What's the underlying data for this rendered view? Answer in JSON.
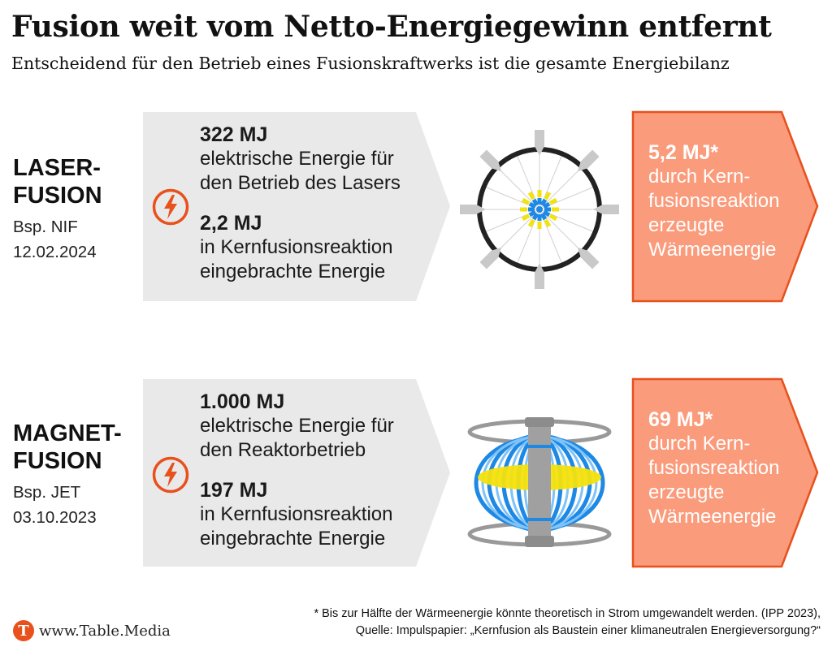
{
  "header": {
    "title": "Fusion weit vom Netto-Energiegewinn entfernt",
    "subtitle": "Entscheidend für den Betrieb eines Fusionskraftwerks ist die gesamte Energiebilanz"
  },
  "rows": [
    {
      "name_line1": "LASER-",
      "name_line2": "FUSION",
      "example": "Bsp. NIF",
      "date": "12.02.2024",
      "input_value": "322 MJ",
      "input_desc_line1": "elektrische Energie für",
      "input_desc_line2": "den Betrieb des Lasers",
      "injected_value": "2,2 MJ",
      "injected_desc_line1": "in Kernfusionsreaktion",
      "injected_desc_line2": "eingebrachte Energie",
      "output_value": "5,2 MJ*",
      "output_desc_line1": "durch Kern-",
      "output_desc_line2": "fusionsreaktion",
      "output_desc_line3": "erzeugte",
      "output_desc_line4": "Wärmeenergie",
      "icon": "lightning-icon",
      "illustration": "laser-target-icon"
    },
    {
      "name_line1": "MAGNET-",
      "name_line2": "FUSION",
      "example": "Bsp. JET",
      "date": "03.10.2023",
      "input_value": "1.000 MJ",
      "input_desc_line1": "elektrische Energie für",
      "input_desc_line2": "den Reaktorbetrieb",
      "injected_value": "197 MJ",
      "injected_desc_line1": "in Kernfusionsreaktion",
      "injected_desc_line2": "eingebrachte Energie",
      "output_value": "69 MJ*",
      "output_desc_line1": "durch Kern-",
      "output_desc_line2": "fusionsreaktion",
      "output_desc_line3": "erzeugte",
      "output_desc_line4": "Wärmeenergie",
      "icon": "lightning-icon",
      "illustration": "tokamak-icon"
    }
  ],
  "footer": {
    "logo_letter": "T",
    "url": "www.Table.Media",
    "footnote_line1": "* Bis zur Hälfte der Wärmeenergie könnte theoretisch in Strom umgewandelt werden. (IPP 2023),",
    "footnote_line2": "Quelle: Impulspapier: „Kernfusion als Baustein einer  klimaneutralen Energieversorgung?“"
  },
  "colors": {
    "grey_arrow": "#e9e9e9",
    "orange_arrow": "#fa9b7b",
    "orange_border": "#e8501c",
    "accent": "#e8501c",
    "blue": "#1e88e5",
    "yellow": "#f4e20c"
  }
}
